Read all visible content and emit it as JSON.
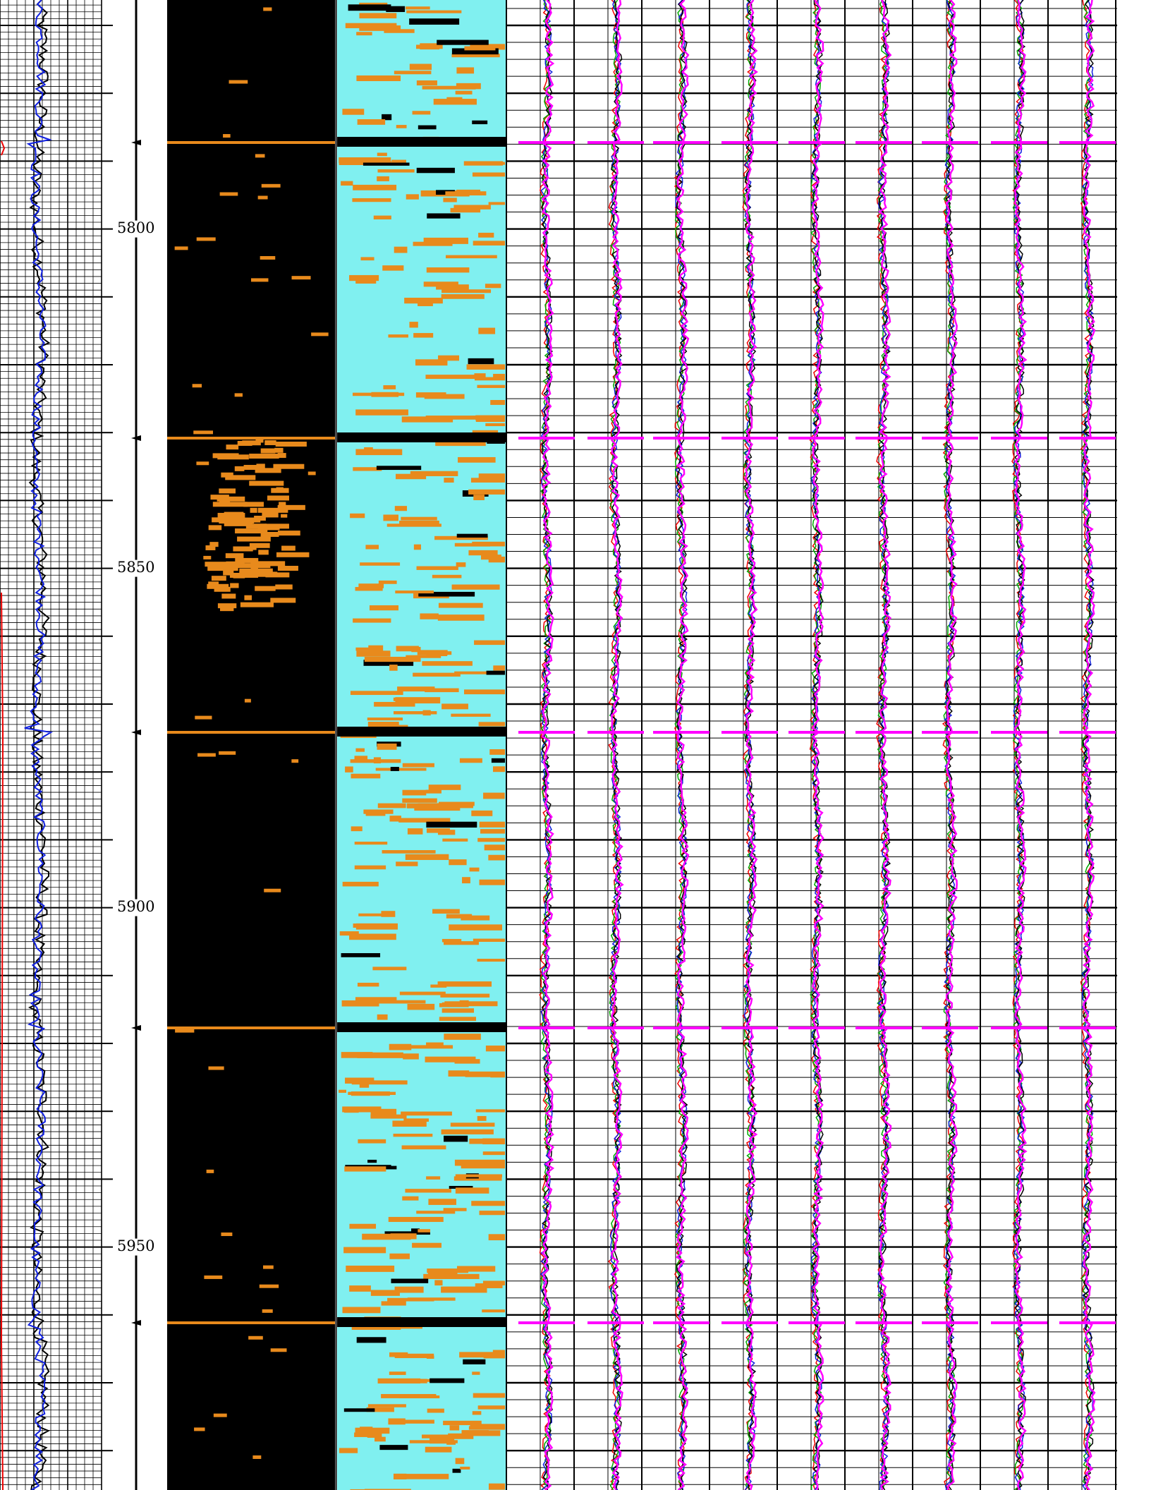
{
  "depth_track": {
    "labels": [
      "5800",
      "5850",
      "5900",
      "5950"
    ]
  }
}
